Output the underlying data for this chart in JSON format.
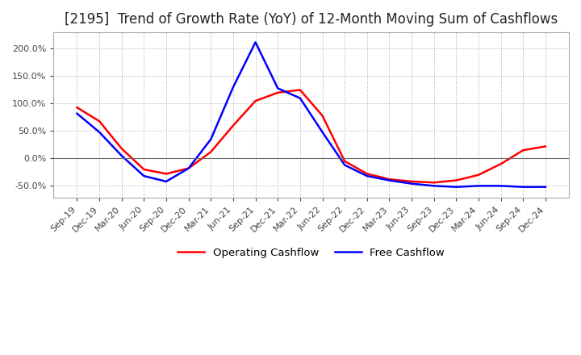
{
  "title": "[2195]  Trend of Growth Rate (YoY) of 12-Month Moving Sum of Cashflows",
  "title_fontsize": 12,
  "background_color": "#ffffff",
  "grid_color": "#aaaaaa",
  "x_labels": [
    "Sep-19",
    "Dec-19",
    "Mar-20",
    "Jun-20",
    "Sep-20",
    "Dec-20",
    "Mar-21",
    "Jun-21",
    "Sep-21",
    "Dec-21",
    "Mar-22",
    "Jun-22",
    "Sep-22",
    "Dec-22",
    "Mar-23",
    "Jun-23",
    "Sep-23",
    "Dec-23",
    "Mar-24",
    "Jun-24",
    "Sep-24",
    "Dec-24"
  ],
  "operating_cashflow": [
    0.93,
    0.68,
    0.18,
    -0.2,
    -0.28,
    -0.18,
    0.12,
    0.6,
    1.05,
    1.2,
    1.25,
    0.78,
    -0.05,
    -0.28,
    -0.38,
    -0.42,
    -0.44,
    -0.4,
    -0.3,
    -0.1,
    0.15,
    0.22
  ],
  "free_cashflow": [
    0.82,
    0.48,
    0.05,
    -0.32,
    -0.42,
    -0.18,
    0.35,
    1.3,
    2.12,
    1.28,
    1.1,
    0.48,
    -0.12,
    -0.32,
    -0.4,
    -0.46,
    -0.5,
    -0.52,
    -0.5,
    -0.5,
    -0.52,
    -0.52
  ],
  "op_color": "#ff0000",
  "free_color": "#0000ff",
  "legend_labels": [
    "Operating Cashflow",
    "Free Cashflow"
  ],
  "ylim_min": -0.72,
  "ylim_max": 2.3,
  "yticks": [
    -0.5,
    0.0,
    0.5,
    1.0,
    1.5,
    2.0
  ]
}
